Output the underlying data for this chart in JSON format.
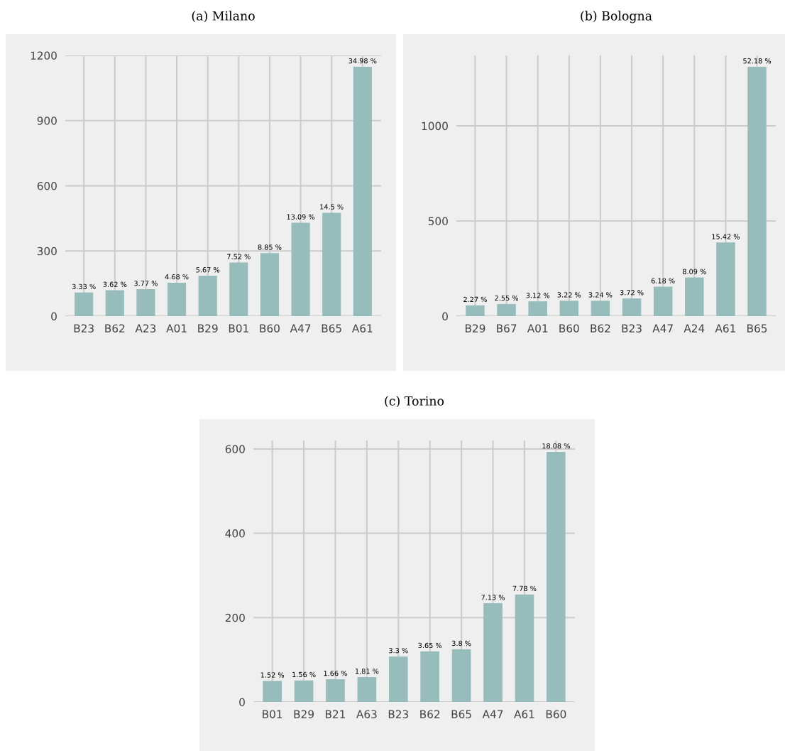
{
  "chart_data": [
    {
      "type": "bar",
      "title": "(a) Milano",
      "categories": [
        "B23",
        "B62",
        "A23",
        "A01",
        "B29",
        "B01",
        "B60",
        "A47",
        "B65",
        "A61"
      ],
      "values": [
        109,
        119,
        124,
        154,
        186,
        247,
        290,
        430,
        476,
        1148
      ],
      "color": "#96bcbb",
      "ylim": [
        0,
        1200
      ],
      "yticks": [
        0,
        300,
        600,
        900,
        1200
      ],
      "grid": true,
      "annotations": [
        {
          "text": "3.33 %",
          "x": "B23",
          "y": 109
        },
        {
          "text": "3.62 %",
          "x": "B62",
          "y": 119
        },
        {
          "text": "3.77 %",
          "x": "A23",
          "y": 124
        },
        {
          "text": "4.68 %",
          "x": "A01",
          "y": 154
        },
        {
          "text": "5.67 %",
          "x": "B29",
          "y": 186
        },
        {
          "text": "7.52 %",
          "x": "B01",
          "y": 247
        },
        {
          "text": "8.85 %",
          "x": "B60",
          "y": 290
        },
        {
          "text": "13.09 %",
          "x": "A47",
          "y": 430
        },
        {
          "text": "14.5 %",
          "x": "B65",
          "y": 476
        },
        {
          "text": "34.98 %",
          "x": "A61",
          "y": 1148
        }
      ]
    },
    {
      "type": "bar",
      "title": "(b) Bologna",
      "categories": [
        "B29",
        "B67",
        "A01",
        "B60",
        "B62",
        "B23",
        "A47",
        "A24",
        "A61",
        "B65"
      ],
      "values": [
        57,
        64,
        78,
        81,
        81,
        93,
        155,
        203,
        387,
        1310
      ],
      "color": "#96bcbb",
      "ylim": [
        0,
        1370
      ],
      "yticks": [
        0,
        500,
        1000
      ],
      "grid": true,
      "annotations": [
        {
          "text": "2.27 %",
          "x": "B29",
          "y": 57
        },
        {
          "text": "2.55 %",
          "x": "B67",
          "y": 64
        },
        {
          "text": "3.12 %",
          "x": "A01",
          "y": 78
        },
        {
          "text": "3.22 %",
          "x": "B60",
          "y": 81
        },
        {
          "text": "3.24 %",
          "x": "B62",
          "y": 81
        },
        {
          "text": "3.72 %",
          "x": "B23",
          "y": 93
        },
        {
          "text": "6.18 %",
          "x": "A47",
          "y": 155
        },
        {
          "text": "8.09 %",
          "x": "A24",
          "y": 203
        },
        {
          "text": "15.42 %",
          "x": "A61",
          "y": 387
        },
        {
          "text": "52.18 %",
          "x": "B65",
          "y": 1310
        }
      ]
    },
    {
      "type": "bar",
      "title": "(c) Torino",
      "categories": [
        "B01",
        "B29",
        "B21",
        "A63",
        "B23",
        "B62",
        "B65",
        "A47",
        "A61",
        "B60"
      ],
      "values": [
        50,
        51,
        54,
        59,
        108,
        120,
        125,
        234,
        255,
        593
      ],
      "color": "#96bcbb",
      "ylim": [
        0,
        620
      ],
      "yticks": [
        0,
        200,
        400,
        600
      ],
      "grid": true,
      "annotations": [
        {
          "text": "1.52 %",
          "x": "B01",
          "y": 50
        },
        {
          "text": "1.56 %",
          "x": "B29",
          "y": 51
        },
        {
          "text": "1.66 %",
          "x": "B21",
          "y": 54
        },
        {
          "text": "1.81 %",
          "x": "A63",
          "y": 59
        },
        {
          "text": "3.3 %",
          "x": "B23",
          "y": 108
        },
        {
          "text": "3.65 %",
          "x": "B62",
          "y": 120
        },
        {
          "text": "3.8 %",
          "x": "B65",
          "y": 125
        },
        {
          "text": "7.13 %",
          "x": "A47",
          "y": 234
        },
        {
          "text": "7.78 %",
          "x": "A61",
          "y": 255
        },
        {
          "text": "18.08 %",
          "x": "B60",
          "y": 593
        }
      ]
    }
  ]
}
